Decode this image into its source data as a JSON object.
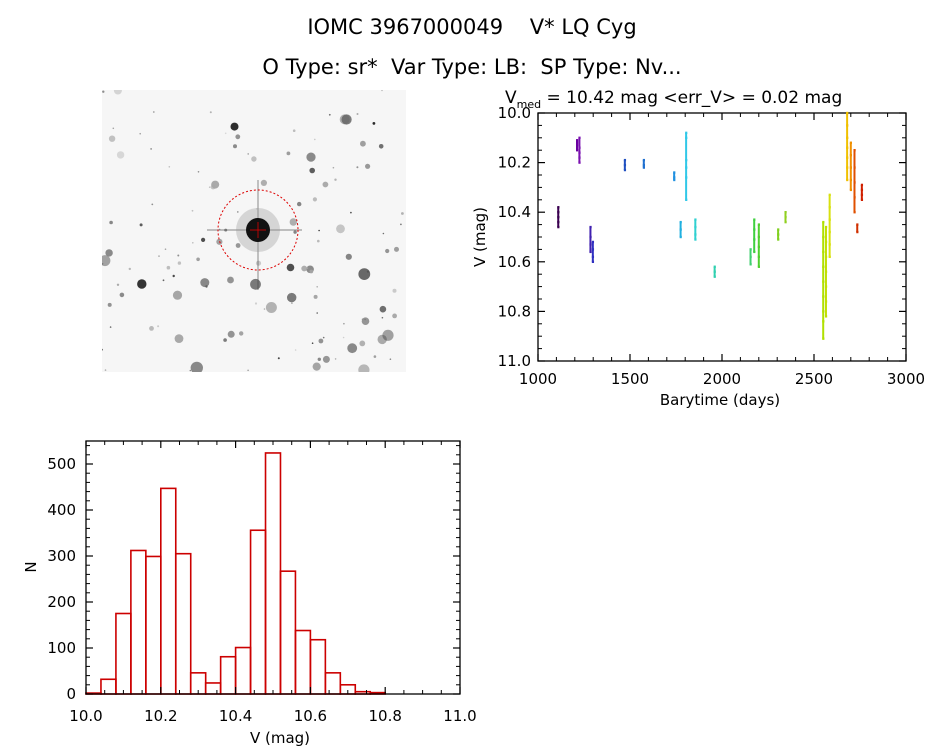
{
  "header": {
    "title_line1": "IOMC 3967000049    V* LQ Cyg",
    "title_line2": "O Type: sr*  Var Type: LB:  SP Type: Nv..."
  },
  "image_panel": {
    "target_marker_color": "#dd0000"
  },
  "chart_data": [
    {
      "type": "scatter",
      "title_prefix": "V",
      "title_subscript": "med",
      "title_rest": " = 10.42 mag <err_V> = 0.02 mag",
      "xlabel": "Barytime (days)",
      "ylabel": "V (mag)",
      "xlim": [
        1000,
        3000
      ],
      "ylim": [
        11.0,
        10.0
      ],
      "y_inverted": true,
      "x_ticks": [
        "1000",
        "1500",
        "2000",
        "2500",
        "3000"
      ],
      "y_ticks": [
        "10.0",
        "10.2",
        "10.4",
        "10.6",
        "10.8",
        "11.0"
      ],
      "groups": [
        {
          "x": 1110,
          "y": [
            10.38,
            10.4,
            10.42,
            10.44,
            10.46
          ],
          "color": "#3a0050"
        },
        {
          "x": 1212,
          "y": [
            10.11,
            10.13,
            10.15,
            10.12
          ],
          "color": "#6a00a0"
        },
        {
          "x": 1225,
          "y": [
            10.1,
            10.14,
            10.18,
            10.2,
            10.16
          ],
          "color": "#7a10b0"
        },
        {
          "x": 1285,
          "y": [
            10.46,
            10.5,
            10.53,
            10.56
          ],
          "color": "#4020b0"
        },
        {
          "x": 1298,
          "y": [
            10.52,
            10.55,
            10.58,
            10.6
          ],
          "color": "#3030c0"
        },
        {
          "x": 1472,
          "y": [
            10.19,
            10.21,
            10.23
          ],
          "color": "#2050c0"
        },
        {
          "x": 1575,
          "y": [
            10.19,
            10.21,
            10.22
          ],
          "color": "#2070d0"
        },
        {
          "x": 1740,
          "y": [
            10.24,
            10.26,
            10.27
          ],
          "color": "#2090e0"
        },
        {
          "x": 1775,
          "y": [
            10.44,
            10.47,
            10.5
          ],
          "color": "#20b0e0"
        },
        {
          "x": 1805,
          "y": [
            10.08,
            10.1,
            10.19,
            10.22,
            10.26,
            10.35
          ],
          "color": "#30c8e8"
        },
        {
          "x": 1855,
          "y": [
            10.43,
            10.46,
            10.49,
            10.51
          ],
          "color": "#30d0d0"
        },
        {
          "x": 1960,
          "y": [
            10.62,
            10.64,
            10.66
          ],
          "color": "#30d0b0"
        },
        {
          "x": 2155,
          "y": [
            10.55,
            10.58,
            10.61
          ],
          "color": "#40d070"
        },
        {
          "x": 2175,
          "y": [
            10.43,
            10.47,
            10.51,
            10.56
          ],
          "color": "#40d040"
        },
        {
          "x": 2200,
          "y": [
            10.45,
            10.5,
            10.54,
            10.58,
            10.62
          ],
          "color": "#50d030"
        },
        {
          "x": 2305,
          "y": [
            10.47,
            10.49,
            10.51
          ],
          "color": "#80d020"
        },
        {
          "x": 2345,
          "y": [
            10.4,
            10.42,
            10.44
          ],
          "color": "#90d020"
        },
        {
          "x": 2550,
          "y": [
            10.44,
            10.5,
            10.56,
            10.62,
            10.68,
            10.74,
            10.8,
            10.84,
            10.91
          ],
          "color": "#b0e000"
        },
        {
          "x": 2565,
          "y": [
            10.46,
            10.52,
            10.58,
            10.64,
            10.7,
            10.76,
            10.82
          ],
          "color": "#c0e000"
        },
        {
          "x": 2585,
          "y": [
            10.33,
            10.38,
            10.43,
            10.48,
            10.53,
            10.58
          ],
          "color": "#d8e010"
        },
        {
          "x": 2680,
          "y": [
            10.0,
            10.05,
            10.1,
            10.14,
            10.18,
            10.22,
            10.27
          ],
          "color": "#f0c000"
        },
        {
          "x": 2700,
          "y": [
            10.12,
            10.17,
            10.22,
            10.27,
            10.31
          ],
          "color": "#f09000"
        },
        {
          "x": 2720,
          "y": [
            10.15,
            10.22,
            10.28,
            10.34,
            10.4
          ],
          "color": "#e05000"
        },
        {
          "x": 2735,
          "y": [
            10.45,
            10.48
          ],
          "color": "#d03000"
        },
        {
          "x": 2760,
          "y": [
            10.29,
            10.31,
            10.33,
            10.35
          ],
          "color": "#d02000"
        }
      ]
    },
    {
      "type": "bar",
      "xlabel": "V (mag)",
      "ylabel": "N",
      "xlim": [
        10.0,
        11.0
      ],
      "ylim": [
        0,
        550
      ],
      "x_ticks": [
        "10.0",
        "10.2",
        "10.4",
        "10.6",
        "10.8",
        "11.0"
      ],
      "y_ticks": [
        "0",
        "100",
        "200",
        "300",
        "400",
        "500"
      ],
      "bar_color": "#cc0000",
      "bin_width": 0.04,
      "bin_left_edges": [
        10.0,
        10.04,
        10.08,
        10.12,
        10.16,
        10.2,
        10.24,
        10.28,
        10.32,
        10.36,
        10.4,
        10.44,
        10.48,
        10.52,
        10.56,
        10.6,
        10.64,
        10.68,
        10.72,
        10.76,
        10.8,
        10.84,
        10.88
      ],
      "values": [
        2,
        32,
        175,
        312,
        299,
        447,
        305,
        46,
        24,
        81,
        101,
        356,
        524,
        267,
        138,
        118,
        46,
        20,
        5,
        3,
        0,
        0,
        0
      ]
    }
  ]
}
